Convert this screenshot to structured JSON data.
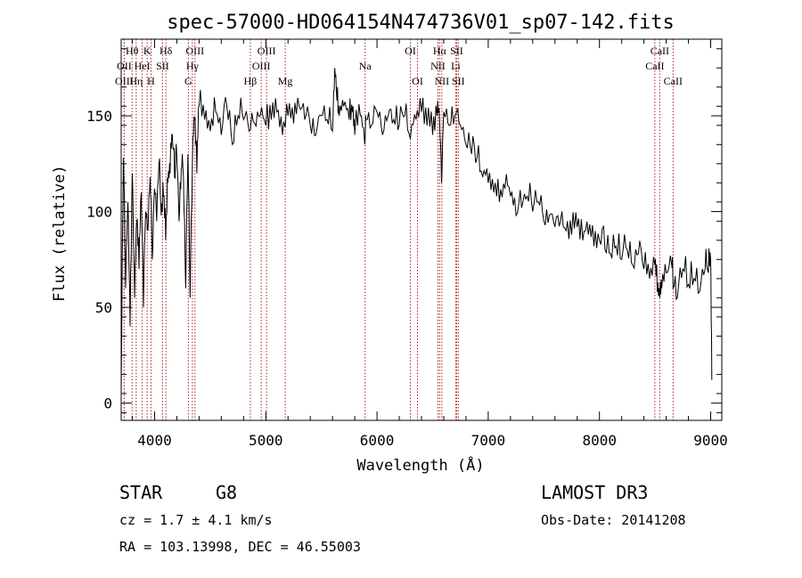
{
  "chart_data": {
    "type": "line",
    "title": "spec-57000-HD064154N474736V01_sp07-142.fits",
    "xlabel": "Wavelength (Å)",
    "ylabel": "Flux (relative)",
    "xlim": [
      3700,
      9100
    ],
    "ylim": [
      -9,
      190
    ],
    "xticks": [
      4000,
      5000,
      6000,
      7000,
      8000,
      9000
    ],
    "yticks": [
      0,
      50,
      100,
      150
    ],
    "xtick_labels": [
      "4000",
      "5000",
      "6000",
      "7000",
      "8000",
      "9000"
    ],
    "ytick_labels": [
      "0",
      "50",
      "100",
      "150"
    ],
    "series": [
      {
        "name": "spectrum",
        "x": [
          3700,
          3720,
          3740,
          3760,
          3780,
          3800,
          3820,
          3840,
          3860,
          3880,
          3900,
          3920,
          3940,
          3960,
          3980,
          4000,
          4020,
          4040,
          4060,
          4080,
          4100,
          4120,
          4140,
          4160,
          4180,
          4200,
          4220,
          4240,
          4260,
          4280,
          4300,
          4320,
          4340,
          4360,
          4380,
          4400,
          4450,
          4500,
          4550,
          4600,
          4650,
          4700,
          4750,
          4800,
          4850,
          4900,
          4950,
          5000,
          5050,
          5100,
          5150,
          5200,
          5250,
          5300,
          5350,
          5400,
          5450,
          5500,
          5550,
          5600,
          5620,
          5640,
          5660,
          5700,
          5750,
          5780,
          5800,
          5850,
          5890,
          5900,
          5950,
          6000,
          6050,
          6100,
          6150,
          6200,
          6250,
          6300,
          6350,
          6400,
          6450,
          6500,
          6540,
          6563,
          6580,
          6600,
          6650,
          6700,
          6750,
          6800,
          6850,
          6900,
          6950,
          7000,
          7050,
          7100,
          7150,
          7200,
          7250,
          7300,
          7350,
          7400,
          7450,
          7500,
          7550,
          7600,
          7650,
          7700,
          7750,
          7800,
          7850,
          7900,
          7950,
          8000,
          8050,
          8100,
          8150,
          8200,
          8250,
          8300,
          8350,
          8400,
          8450,
          8498,
          8520,
          8542,
          8560,
          8600,
          8650,
          8662,
          8700,
          8750,
          8800,
          8850,
          8900,
          8950,
          8980,
          9000,
          9010
        ],
        "values": [
          5,
          128,
          60,
          105,
          40,
          120,
          55,
          95,
          70,
          110,
          50,
          100,
          90,
          118,
          75,
          112,
          95,
          125,
          98,
          108,
          85,
          115,
          120,
          140,
          118,
          128,
          95,
          122,
          118,
          60,
          130,
          55,
          125,
          148,
          120,
          155,
          148,
          142,
          152,
          140,
          155,
          135,
          150,
          148,
          142,
          146,
          150,
          145,
          148,
          152,
          140,
          150,
          146,
          155,
          148,
          145,
          140,
          150,
          148,
          142,
          175,
          158,
          150,
          155,
          148,
          152,
          140,
          150,
          135,
          148,
          145,
          152,
          140,
          150,
          148,
          145,
          150,
          138,
          148,
          152,
          145,
          140,
          150,
          148,
          115,
          152,
          145,
          150,
          145,
          135,
          130,
          128,
          118,
          115,
          110,
          105,
          112,
          108,
          98,
          102,
          108,
          100,
          105,
          95,
          98,
          92,
          95,
          90,
          88,
          92,
          85,
          88,
          82,
          85,
          80,
          78,
          82,
          75,
          80,
          72,
          78,
          70,
          65,
          72,
          58,
          55,
          60,
          68,
          72,
          60,
          55,
          70,
          62,
          65,
          58,
          70,
          68,
          75,
          12
        ]
      }
    ],
    "line_markers": [
      {
        "label": "Hθ",
        "wl": 3798,
        "row": 1
      },
      {
        "label": "OII",
        "wl": 3727,
        "row": 2
      },
      {
        "label": "OIII",
        "wl": 3727,
        "row": 3
      },
      {
        "label": "K",
        "wl": 3934,
        "row": 1
      },
      {
        "label": "HeI",
        "wl": 3889,
        "row": 2
      },
      {
        "label": "Hη",
        "wl": 3835,
        "row": 3
      },
      {
        "label": "SII",
        "wl": 4072,
        "row": 2
      },
      {
        "label": "H",
        "wl": 3968,
        "row": 3
      },
      {
        "label": "Hδ",
        "wl": 4102,
        "row": 1
      },
      {
        "label": "OIII",
        "wl": 4363,
        "row": 1
      },
      {
        "label": "Hγ",
        "wl": 4340,
        "row": 2
      },
      {
        "label": "G",
        "wl": 4304,
        "row": 3
      },
      {
        "label": "Hβ",
        "wl": 4861,
        "row": 3
      },
      {
        "label": "OIII",
        "wl": 5007,
        "row": 1
      },
      {
        "label": "OIII",
        "wl": 4959,
        "row": 2
      },
      {
        "label": "Mg",
        "wl": 5175,
        "row": 3
      },
      {
        "label": "Na",
        "wl": 5893,
        "row": 2
      },
      {
        "label": "OI",
        "wl": 6300,
        "row": 1
      },
      {
        "label": "OI",
        "wl": 6364,
        "row": 3
      },
      {
        "label": "Hα",
        "wl": 6563,
        "row": 1
      },
      {
        "label": "NII",
        "wl": 6548,
        "row": 2
      },
      {
        "label": "NII",
        "wl": 6583,
        "row": 3
      },
      {
        "label": "SII",
        "wl": 6716,
        "row": 1
      },
      {
        "label": "Li",
        "wl": 6708,
        "row": 2
      },
      {
        "label": "SII",
        "wl": 6731,
        "row": 3
      },
      {
        "label": "CaII",
        "wl": 8542,
        "row": 1
      },
      {
        "label": "CaII",
        "wl": 8498,
        "row": 2
      },
      {
        "label": "CaII",
        "wl": 8662,
        "row": 3
      }
    ]
  },
  "info": {
    "object_class": "STAR",
    "subclass": "G8",
    "cz": "cz = 1.7 ± 4.1 km/s",
    "coords": "RA = 103.13998, DEC =  46.55003",
    "survey": "LAMOST DR3",
    "obs_date": "Obs-Date: 20141208"
  }
}
